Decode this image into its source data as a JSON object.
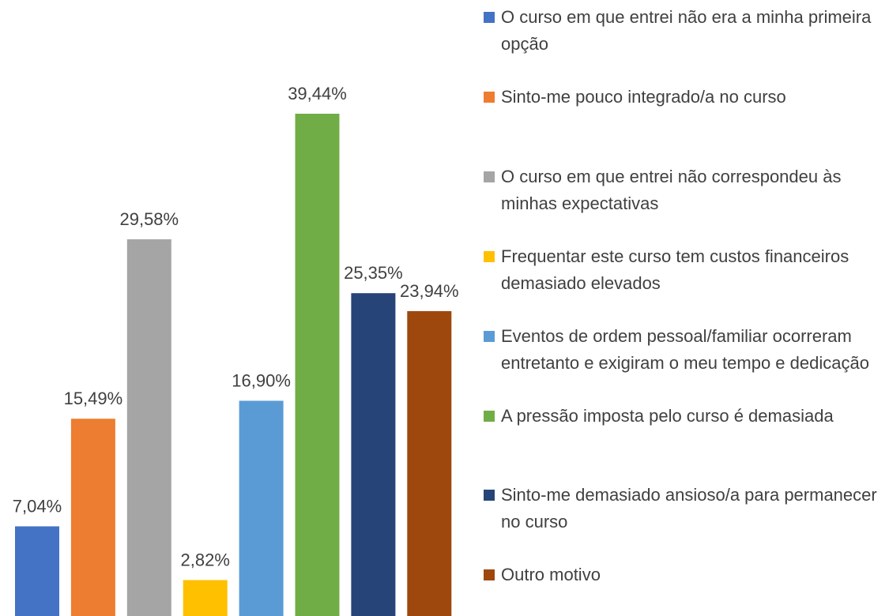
{
  "chart_data": {
    "type": "bar",
    "series": [
      {
        "name": "O curso em que entrei não era a minha primeira opção",
        "color": "#4472c4",
        "values": [
          7.04
        ],
        "value_labels": [
          "7,04%"
        ]
      },
      {
        "name": "Sinto-me pouco integrado/a no curso",
        "color": "#ed7d31",
        "values": [
          15.49
        ],
        "value_labels": [
          "15,49%"
        ]
      },
      {
        "name": "O curso em que entrei não correspondeu às minhas expectativas",
        "color": "#a5a5a5",
        "values": [
          29.58
        ],
        "value_labels": [
          "29,58%"
        ]
      },
      {
        "name": "Frequentar este curso tem custos financeiros demasiado elevados",
        "color": "#ffc000",
        "values": [
          2.82
        ],
        "value_labels": [
          "2,82%"
        ]
      },
      {
        "name": "Eventos de ordem pessoal/familiar ocorreram entretanto e exigiram o meu tempo e dedicação",
        "color": "#5b9bd5",
        "values": [
          16.9
        ],
        "value_labels": [
          "16,90%"
        ]
      },
      {
        "name": "A pressão imposta pelo curso é demasiada",
        "color": "#70ad47",
        "values": [
          39.44
        ],
        "value_labels": [
          "39,44%"
        ]
      },
      {
        "name": "Sinto-me demasiado ansioso/a para permanecer no curso",
        "color": "#264478",
        "values": [
          25.35
        ],
        "value_labels": [
          "25,35%"
        ]
      },
      {
        "name": "Outro motivo",
        "color": "#9e480e",
        "values": [
          23.94
        ],
        "value_labels": [
          "23,94%"
        ]
      }
    ]
  }
}
